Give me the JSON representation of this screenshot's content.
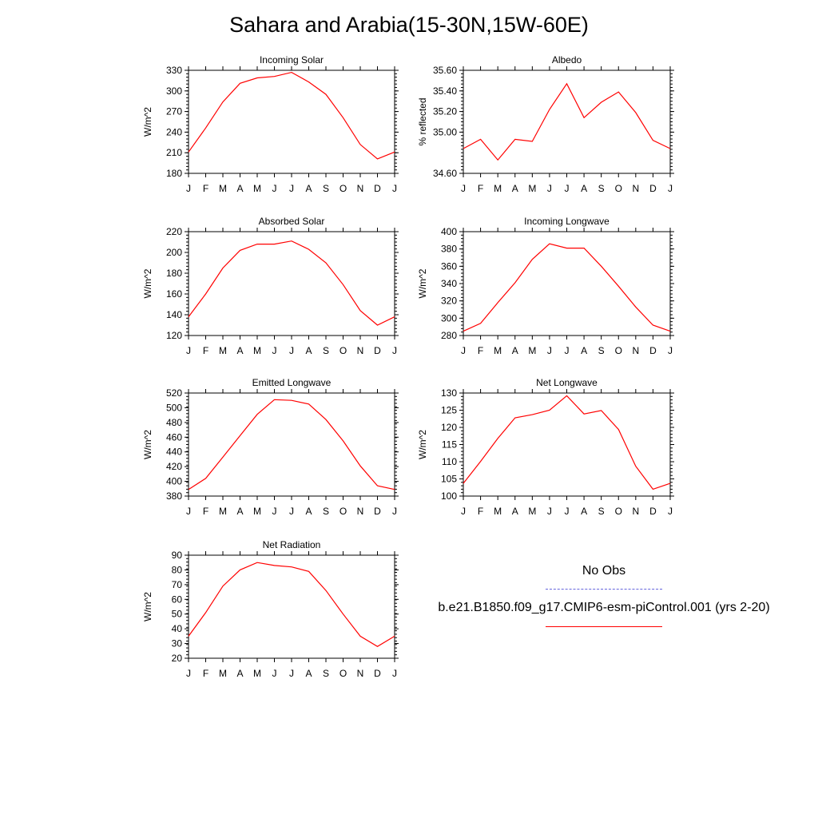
{
  "title": "Sahara and Arabia(15-30N,15W-60E)",
  "colors": {
    "model_line": "#ff0000",
    "obs_line": "#6666dd",
    "axis": "#000000"
  },
  "legend": {
    "obs_label": "No Obs",
    "model_label": "b.e21.B1850.f09_g17.CMIP6-esm-piControl.001 (yrs 2-20)"
  },
  "chart_data": [
    {
      "type": "line",
      "title": "Incoming Solar",
      "ylabel": "W/m^2",
      "categories": [
        "J",
        "F",
        "M",
        "A",
        "M",
        "J",
        "J",
        "A",
        "S",
        "O",
        "N",
        "D",
        "J"
      ],
      "ylim": [
        180,
        330
      ],
      "yticks": [
        180,
        210,
        240,
        270,
        300,
        330
      ],
      "ytick_labels": [
        "180",
        "210",
        "240",
        "270",
        "300",
        "330"
      ],
      "series": [
        {
          "values": [
            211,
            246,
            284,
            311,
            319,
            321,
            327,
            313,
            295,
            261,
            222,
            201,
            211
          ]
        }
      ]
    },
    {
      "type": "line",
      "title": "Albedo",
      "ylabel": "% reflected",
      "categories": [
        "J",
        "F",
        "M",
        "A",
        "M",
        "J",
        "J",
        "A",
        "S",
        "O",
        "N",
        "D",
        "J"
      ],
      "ylim": [
        34.6,
        35.6
      ],
      "yticks": [
        34.6,
        35.0,
        35.2,
        35.4,
        35.6
      ],
      "ytick_labels": [
        "34.60",
        "35.00",
        "35.20",
        "35.40",
        "35.60"
      ],
      "series": [
        {
          "values": [
            34.84,
            34.93,
            34.73,
            34.93,
            34.91,
            35.22,
            35.47,
            35.14,
            35.29,
            35.39,
            35.19,
            34.92,
            34.84
          ]
        }
      ]
    },
    {
      "type": "line",
      "title": "Absorbed Solar",
      "ylabel": "W/m^2",
      "categories": [
        "J",
        "F",
        "M",
        "A",
        "M",
        "J",
        "J",
        "A",
        "S",
        "O",
        "N",
        "D",
        "J"
      ],
      "ylim": [
        120,
        220
      ],
      "yticks": [
        120,
        140,
        160,
        180,
        200,
        220
      ],
      "ytick_labels": [
        "120",
        "140",
        "160",
        "180",
        "200",
        "220"
      ],
      "series": [
        {
          "values": [
            138,
            160,
            185,
            202,
            208,
            208,
            211,
            203,
            190,
            169,
            144,
            130,
            138
          ]
        }
      ]
    },
    {
      "type": "line",
      "title": "Incoming Longwave",
      "ylabel": "W/m^2",
      "categories": [
        "J",
        "F",
        "M",
        "A",
        "M",
        "J",
        "J",
        "A",
        "S",
        "O",
        "N",
        "D",
        "J"
      ],
      "ylim": [
        280,
        400
      ],
      "yticks": [
        280,
        300,
        320,
        340,
        360,
        380,
        400
      ],
      "ytick_labels": [
        "280",
        "300",
        "320",
        "340",
        "360",
        "380",
        "400"
      ],
      "series": [
        {
          "values": [
            285,
            294,
            318,
            341,
            368,
            386,
            381,
            381,
            360,
            337,
            313,
            292,
            285
          ]
        }
      ]
    },
    {
      "type": "line",
      "title": "Emitted Longwave",
      "ylabel": "W/m^2",
      "categories": [
        "J",
        "F",
        "M",
        "A",
        "M",
        "J",
        "J",
        "A",
        "S",
        "O",
        "N",
        "D",
        "J"
      ],
      "ylim": [
        380,
        520
      ],
      "yticks": [
        380,
        400,
        420,
        440,
        460,
        480,
        500,
        520
      ],
      "ytick_labels": [
        "380",
        "400",
        "420",
        "440",
        "460",
        "480",
        "500",
        "520"
      ],
      "series": [
        {
          "values": [
            389,
            404,
            433,
            462,
            491,
            511,
            510,
            505,
            484,
            455,
            421,
            394,
            389
          ]
        }
      ]
    },
    {
      "type": "line",
      "title": "Net Longwave",
      "ylabel": "W/m^2",
      "categories": [
        "J",
        "F",
        "M",
        "A",
        "M",
        "J",
        "J",
        "A",
        "S",
        "O",
        "N",
        "D",
        "J"
      ],
      "ylim": [
        100,
        130
      ],
      "yticks": [
        100,
        105,
        110,
        115,
        120,
        125,
        130
      ],
      "ytick_labels": [
        "100",
        "105",
        "110",
        "115",
        "120",
        "125",
        "130"
      ],
      "series": [
        {
          "values": [
            103.7,
            110.1,
            116.8,
            122.8,
            123.7,
            125.0,
            129.2,
            123.9,
            124.9,
            119.4,
            108.7,
            102.0,
            103.7
          ]
        }
      ]
    },
    {
      "type": "line",
      "title": "Net Radiation",
      "ylabel": "W/m^2",
      "categories": [
        "J",
        "F",
        "M",
        "A",
        "M",
        "J",
        "J",
        "A",
        "S",
        "O",
        "N",
        "D",
        "J"
      ],
      "ylim": [
        20,
        90
      ],
      "yticks": [
        20,
        30,
        40,
        50,
        60,
        70,
        80,
        90
      ],
      "ytick_labels": [
        "20",
        "30",
        "40",
        "50",
        "60",
        "70",
        "80",
        "90"
      ],
      "series": [
        {
          "values": [
            35,
            51,
            69,
            80,
            85,
            83,
            82,
            79,
            66,
            50,
            35,
            28,
            35
          ]
        }
      ]
    }
  ]
}
